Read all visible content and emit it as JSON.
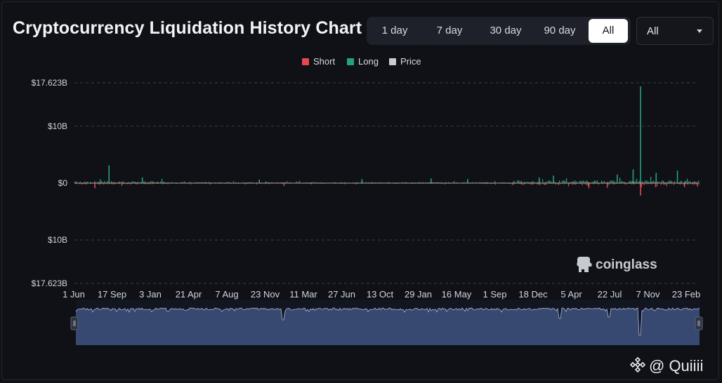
{
  "header": {
    "title": "Cryptocurrency Liquidation History Chart",
    "ranges": [
      "1 day",
      "7 day",
      "30 day",
      "90 day",
      "All"
    ],
    "active_range": "All",
    "select_value": "All"
  },
  "legend": [
    {
      "label": "Short",
      "color": "#e5484d"
    },
    {
      "label": "Long",
      "color": "#26a17b"
    },
    {
      "label": "Price",
      "color": "#c9ccd3"
    }
  ],
  "brand": {
    "logo_text": "coinglass"
  },
  "watermark": {
    "text": "@ Quiiii"
  },
  "chart_data": {
    "type": "bar",
    "title": "Cryptocurrency Liquidation History Chart",
    "y_tick_labels": [
      "$17.623B",
      "$10B",
      "$0",
      "$10B",
      "$17.623B"
    ],
    "y_tick_values": [
      17.623,
      10,
      0,
      -10,
      -17.623
    ],
    "ylim": [
      -17.623,
      17.623
    ],
    "y_unit": "billion USD",
    "x_tick_labels": [
      "1 Jun",
      "17 Sep",
      "3 Jan",
      "21 Apr",
      "7 Aug",
      "23 Nov",
      "11 Mar",
      "27 Jun",
      "13 Oct",
      "29 Jan",
      "16 May",
      "1 Sep",
      "18 Dec",
      "5 Apr",
      "22 Jul",
      "7 Nov",
      "23 Feb"
    ],
    "x_index_range": [
      0,
      1760
    ],
    "series": [
      {
        "name": "Long",
        "color": "#26a17b",
        "baseline_level": 0.35,
        "spikes": [
          {
            "x": 96,
            "value": 3.1
          },
          {
            "x": 190,
            "value": 1.0
          },
          {
            "x": 520,
            "value": 0.6
          },
          {
            "x": 810,
            "value": 0.7
          },
          {
            "x": 1005,
            "value": 0.8
          },
          {
            "x": 1108,
            "value": 0.7
          },
          {
            "x": 1310,
            "value": 1.0
          },
          {
            "x": 1350,
            "value": 1.3
          },
          {
            "x": 1530,
            "value": 1.5
          },
          {
            "x": 1575,
            "value": 2.4
          },
          {
            "x": 1596,
            "value": 17.0
          },
          {
            "x": 1640,
            "value": 1.8
          },
          {
            "x": 1700,
            "value": 2.2
          }
        ]
      },
      {
        "name": "Short",
        "color": "#e5484d",
        "baseline_level": 0.25,
        "spikes": [
          {
            "x": 56,
            "value": -0.9
          },
          {
            "x": 590,
            "value": -0.5
          },
          {
            "x": 1450,
            "value": -0.9
          },
          {
            "x": 1502,
            "value": -0.8
          },
          {
            "x": 1596,
            "value": -2.2
          },
          {
            "x": 1720,
            "value": -0.7
          }
        ]
      },
      {
        "name": "Price",
        "color": "#c9ccd3",
        "note": "flat line near $0 at this scale"
      }
    ],
    "navigator": {
      "description": "range selector showing full history",
      "dips": [
        {
          "x": 590,
          "depth": 0.4
        },
        {
          "x": 1370,
          "depth": 0.35
        },
        {
          "x": 1508,
          "depth": 0.3
        },
        {
          "x": 1596,
          "depth": 0.95
        }
      ]
    }
  }
}
